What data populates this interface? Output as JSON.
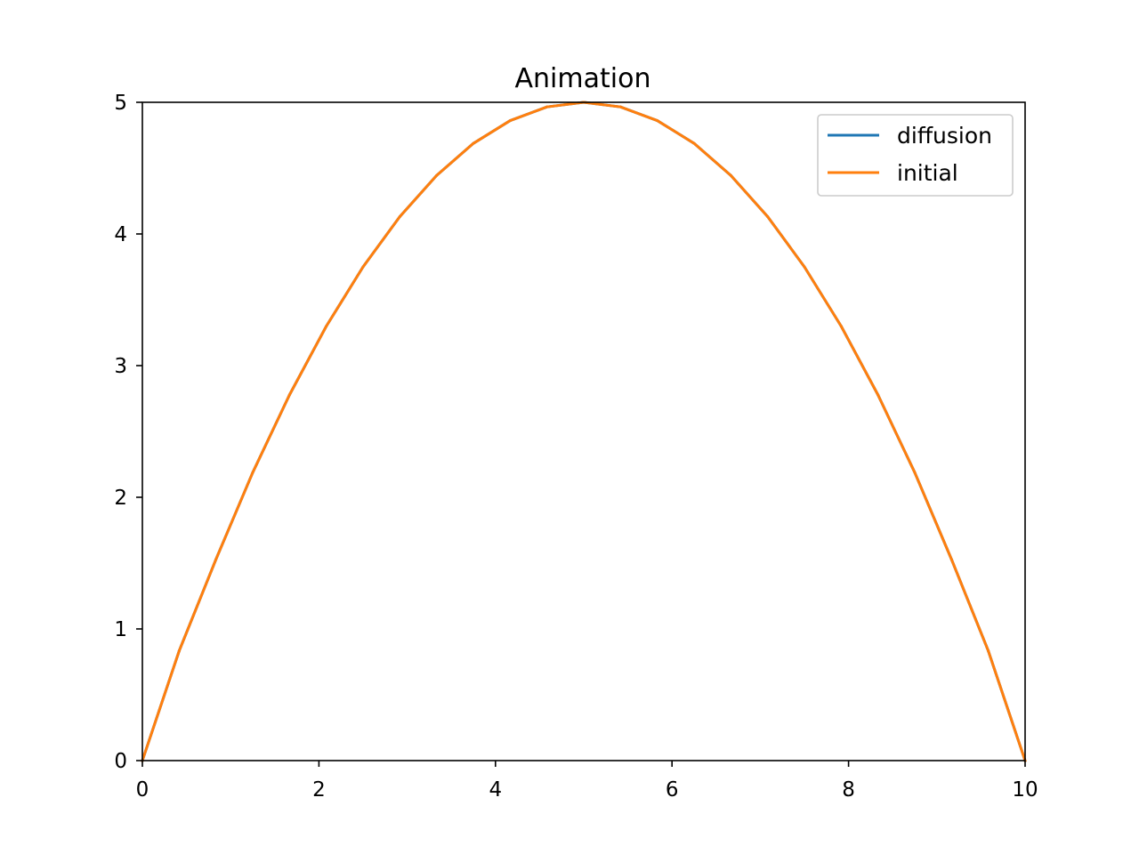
{
  "chart_data": {
    "type": "line",
    "title": "Animation",
    "xlabel": "",
    "ylabel": "",
    "xlim": [
      0,
      10
    ],
    "ylim": [
      0,
      5
    ],
    "xticks": [
      0,
      2,
      4,
      6,
      8,
      10
    ],
    "yticks": [
      0,
      1,
      2,
      3,
      4,
      5
    ],
    "grid": false,
    "legend_position": "top-right",
    "x": [
      0,
      0.4167,
      0.8333,
      1.25,
      1.6667,
      2.0833,
      2.5,
      2.9167,
      3.3333,
      3.75,
      4.1667,
      4.5833,
      5.0,
      5.4167,
      5.8333,
      6.25,
      6.6667,
      7.0833,
      7.5,
      7.9167,
      8.3333,
      8.75,
      9.1667,
      9.5833,
      10
    ],
    "series": [
      {
        "name": "diffusion",
        "color": "#1f77b4",
        "values": [
          0,
          0.833,
          1.528,
          2.188,
          2.778,
          3.299,
          3.75,
          4.132,
          4.444,
          4.688,
          4.861,
          4.965,
          5.0,
          4.965,
          4.861,
          4.688,
          4.444,
          4.132,
          3.75,
          3.299,
          2.778,
          2.188,
          1.528,
          0.833,
          0
        ]
      },
      {
        "name": "initial",
        "color": "#ff7f0e",
        "values": [
          0,
          0.833,
          1.528,
          2.188,
          2.778,
          3.299,
          3.75,
          4.132,
          4.444,
          4.688,
          4.861,
          4.965,
          5.0,
          4.965,
          4.861,
          4.688,
          4.444,
          4.132,
          3.75,
          3.299,
          2.778,
          2.188,
          1.528,
          0.833,
          0
        ]
      }
    ]
  }
}
